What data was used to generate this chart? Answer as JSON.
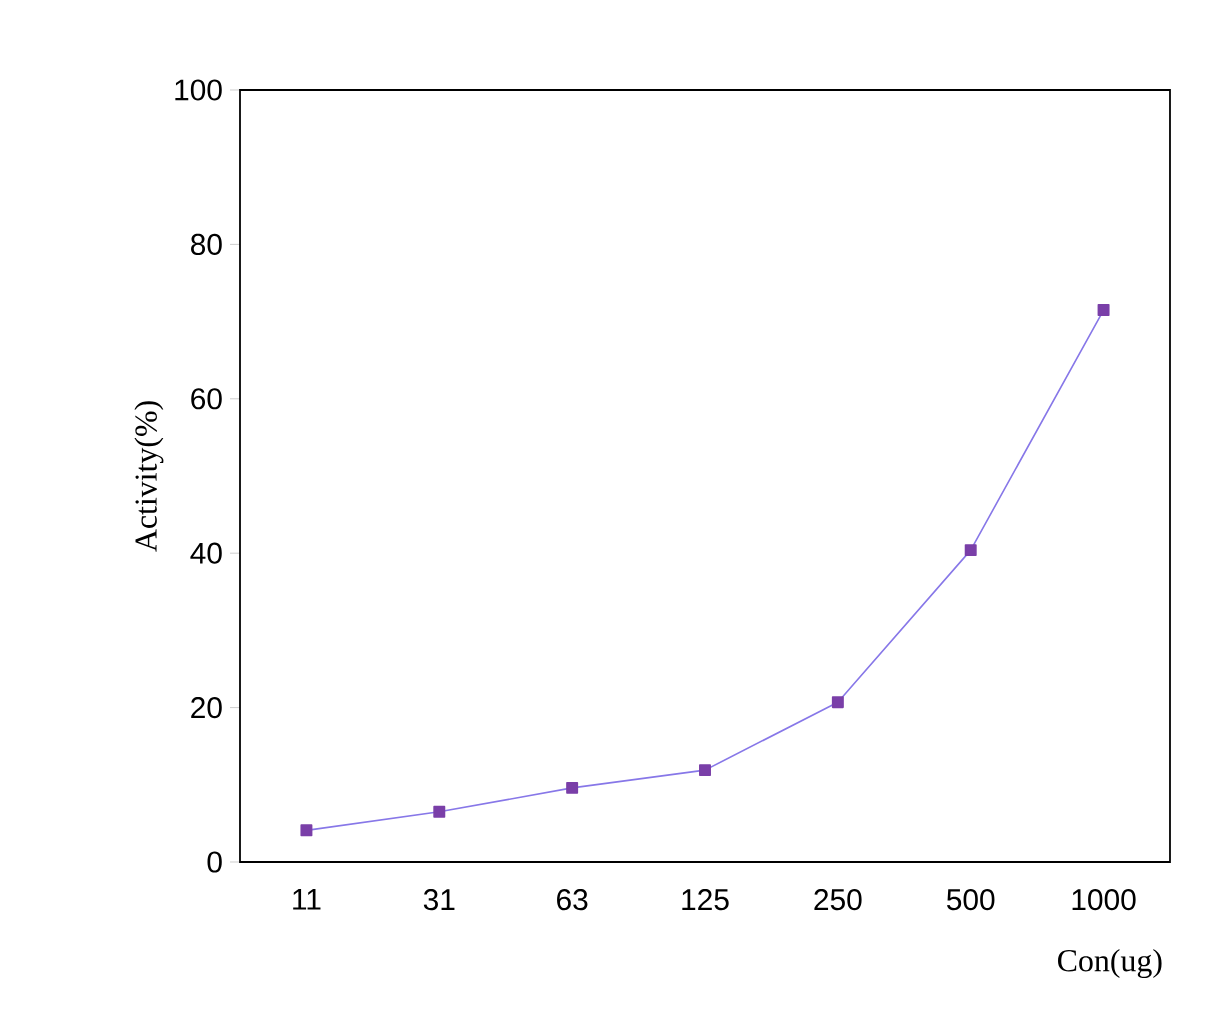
{
  "chart_data": {
    "type": "line",
    "xlabel": "Con(ug)",
    "ylabel": "Activity(%)",
    "categories": [
      "11",
      "31",
      "63",
      "125",
      "250",
      "500",
      "1000"
    ],
    "series": [
      {
        "color": "#7a3fa8",
        "values": [
          4.1,
          6.5,
          9.6,
          11.9,
          20.7,
          40.4,
          71.5
        ]
      }
    ],
    "ylim": [
      0,
      100
    ],
    "yticks": [
      0,
      20,
      40,
      60,
      80,
      100
    ],
    "marker": "square",
    "line_style": "solid",
    "grid": false
  }
}
